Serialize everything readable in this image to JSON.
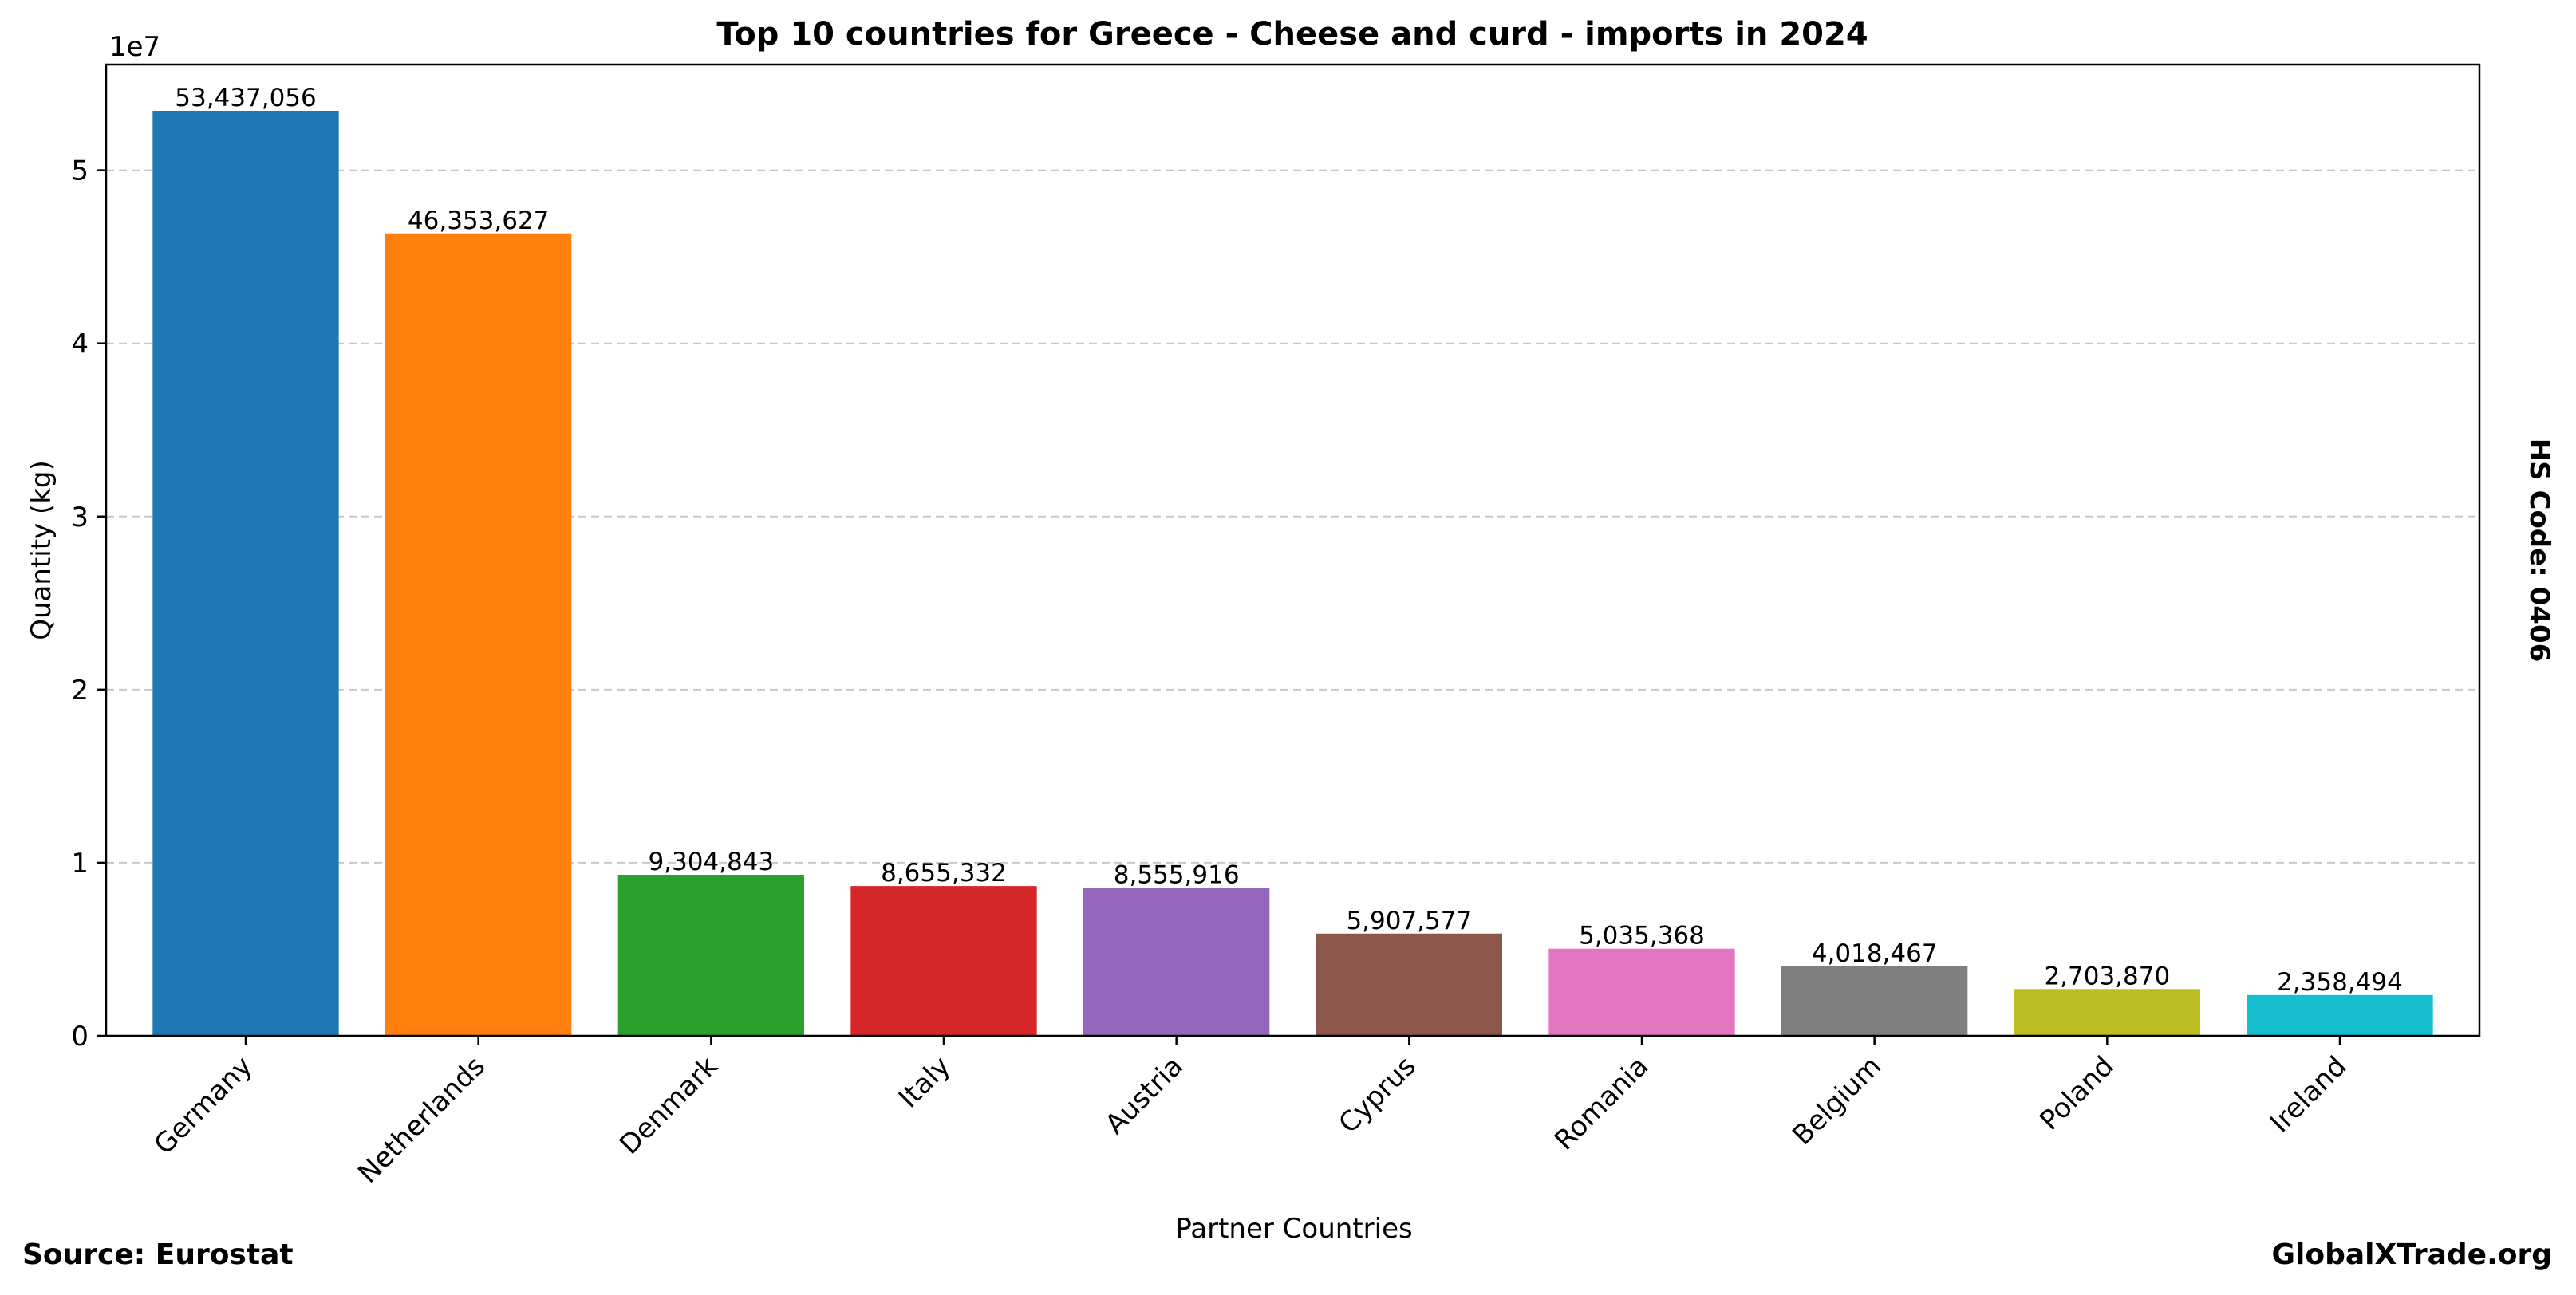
{
  "footer": {
    "source": "Source: Eurostat",
    "site": "GlobalXTrade.org"
  },
  "chart_data": {
    "type": "bar",
    "title": "Top 10 countries for Greece - Cheese and curd - imports in 2024",
    "xlabel": "Partner Countries",
    "ylabel": "Quantity (kg)",
    "side_label": "HS Code: 0406",
    "y_offset_label": "1e7",
    "ylim": [
      0,
      56108909
    ],
    "yticks": [
      0,
      10000000,
      20000000,
      30000000,
      40000000,
      50000000
    ],
    "ytick_labels": [
      "0",
      "1",
      "2",
      "3",
      "4",
      "5"
    ],
    "grid": "y-dashed",
    "categories": [
      "Germany",
      "Netherlands",
      "Denmark",
      "Italy",
      "Austria",
      "Cyprus",
      "Romania",
      "Belgium",
      "Poland",
      "Ireland"
    ],
    "values": [
      53437056,
      46353627,
      9304843,
      8655332,
      8555916,
      5907577,
      5035368,
      4018467,
      2703870,
      2358494
    ],
    "value_labels": [
      "53,437,056",
      "46,353,627",
      "9,304,843",
      "8,655,332",
      "8,555,916",
      "5,907,577",
      "5,035,368",
      "4,018,467",
      "2,703,870",
      "2,358,494"
    ],
    "colors": [
      "#1f77b4",
      "#ff7f0e",
      "#2ca02c",
      "#d62728",
      "#9467bd",
      "#8c564b",
      "#e377c2",
      "#7f7f7f",
      "#bcbd22",
      "#17becf"
    ]
  }
}
